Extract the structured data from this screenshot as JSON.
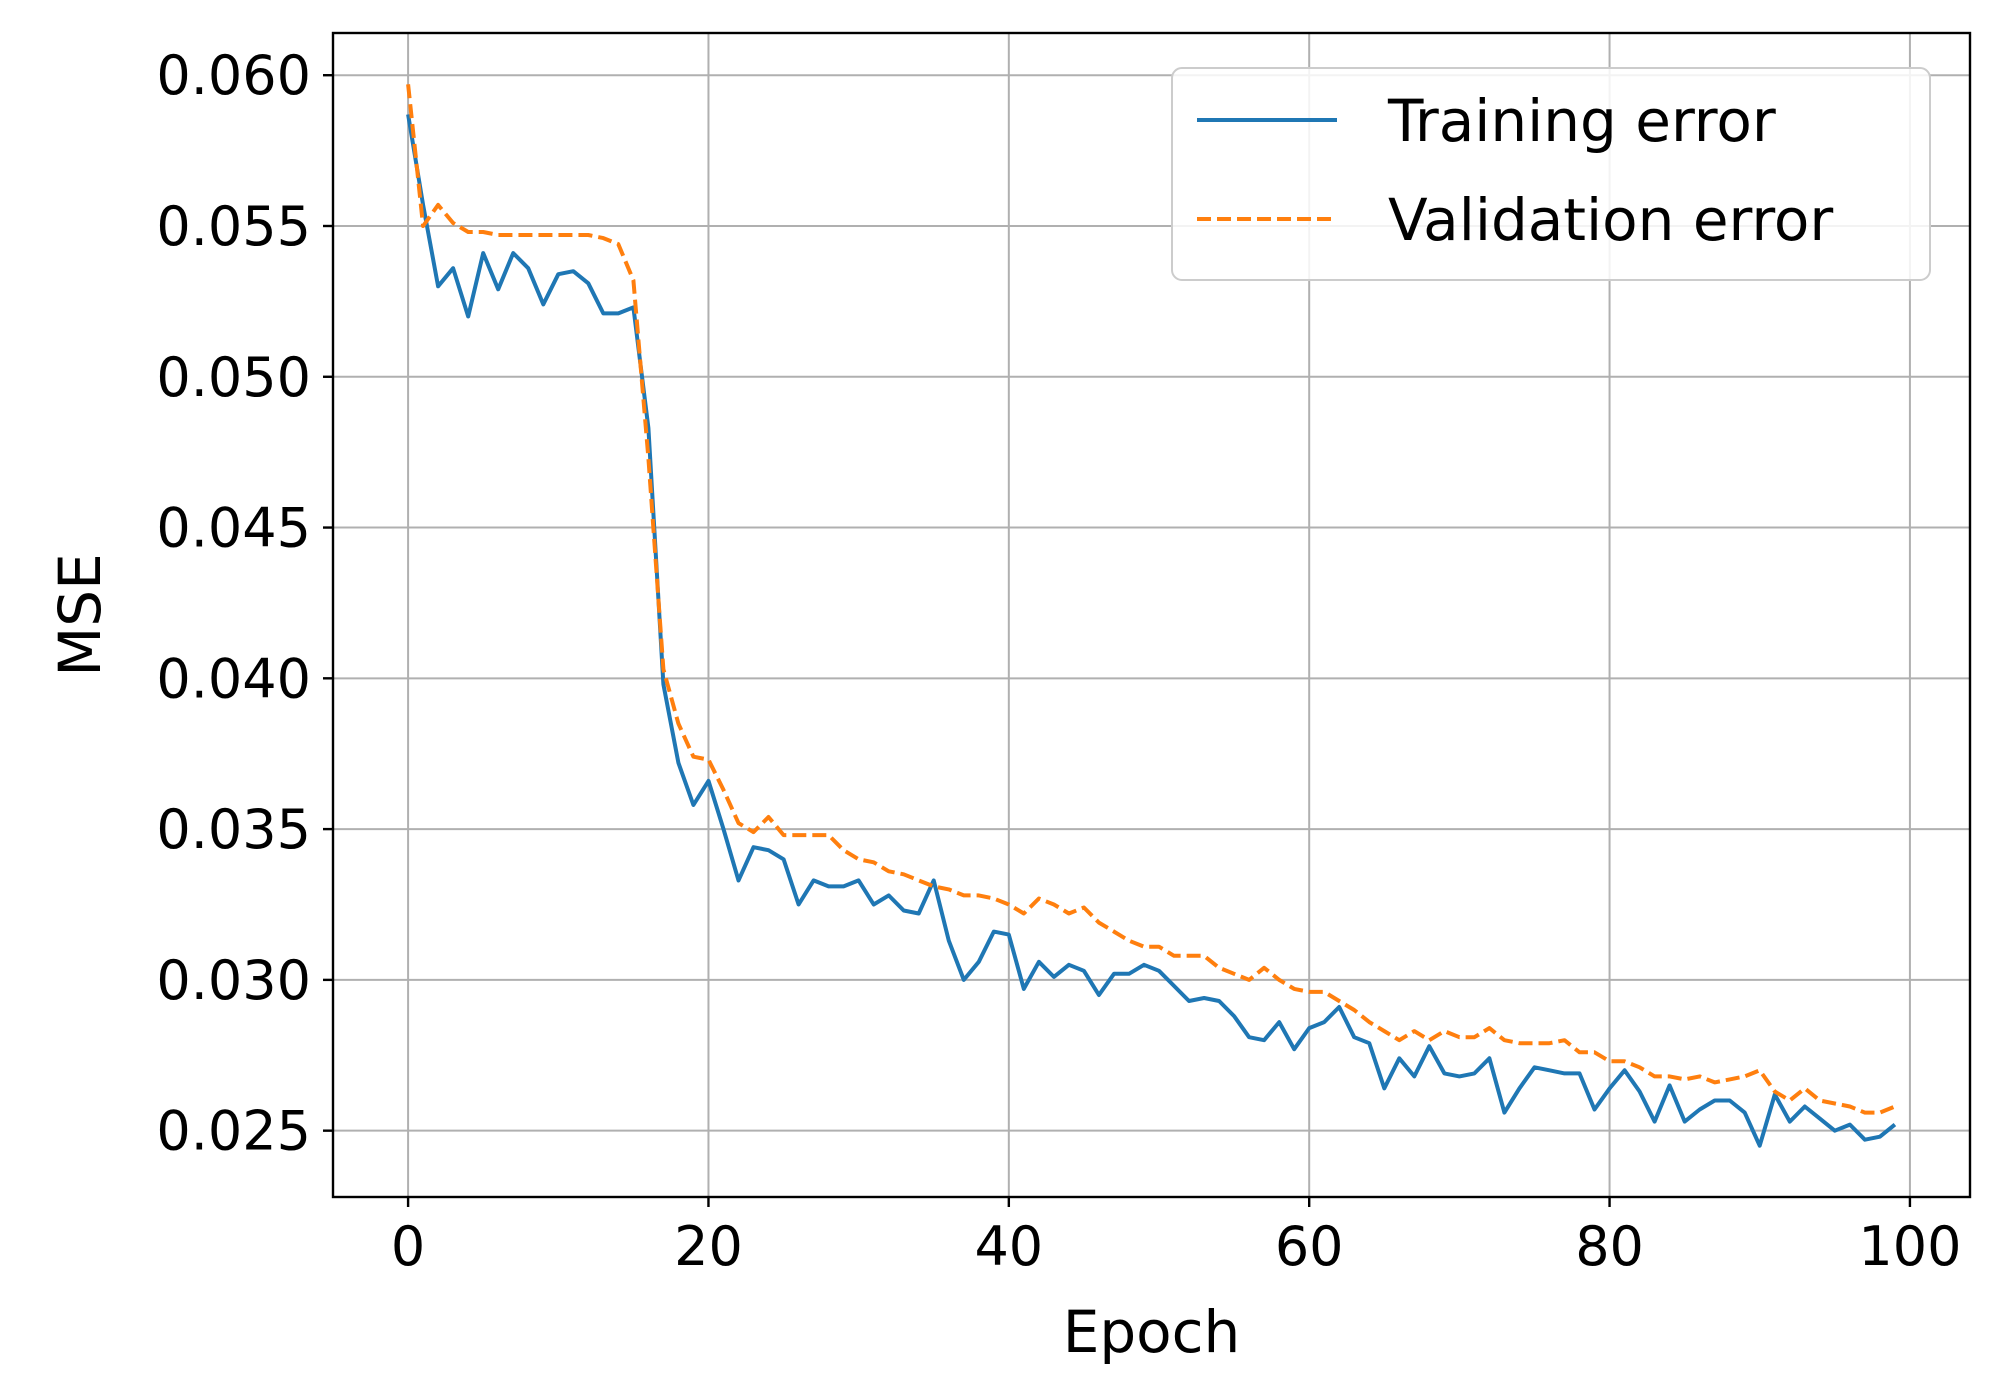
{
  "chart_data": {
    "type": "line",
    "title": "",
    "xlabel": "Epoch",
    "ylabel": "MSE",
    "xlim": [
      -5,
      104
    ],
    "ylim": [
      0.0228,
      0.0614
    ],
    "xticks": [
      0,
      20,
      40,
      60,
      80,
      100
    ],
    "xtick_labels": [
      "0",
      "20",
      "40",
      "60",
      "80",
      "100"
    ],
    "yticks": [
      0.025,
      0.03,
      0.035,
      0.04,
      0.045,
      0.05,
      0.055,
      0.06
    ],
    "ytick_labels": [
      "0.025",
      "0.030",
      "0.035",
      "0.040",
      "0.045",
      "0.050",
      "0.055",
      "0.060"
    ],
    "grid": true,
    "legend_position": "top-right",
    "x": [
      0,
      1,
      2,
      3,
      4,
      5,
      6,
      7,
      8,
      9,
      10,
      11,
      12,
      13,
      14,
      15,
      16,
      17,
      18,
      19,
      20,
      21,
      22,
      23,
      24,
      25,
      26,
      27,
      28,
      29,
      30,
      31,
      32,
      33,
      34,
      35,
      36,
      37,
      38,
      39,
      40,
      41,
      42,
      43,
      44,
      45,
      46,
      47,
      48,
      49,
      50,
      51,
      52,
      53,
      54,
      55,
      56,
      57,
      58,
      59,
      60,
      61,
      62,
      63,
      64,
      65,
      66,
      67,
      68,
      69,
      70,
      71,
      72,
      73,
      74,
      75,
      76,
      77,
      78,
      79,
      80,
      81,
      82,
      83,
      84,
      85,
      86,
      87,
      88,
      89,
      90,
      91,
      92,
      93,
      94,
      95,
      96,
      97,
      98,
      99
    ],
    "series": [
      {
        "name": "Training error",
        "color": "#1f77b4",
        "style": "solid",
        "values": [
          0.0587,
          0.0557,
          0.053,
          0.0536,
          0.052,
          0.0541,
          0.0529,
          0.0541,
          0.0536,
          0.0524,
          0.0534,
          0.0535,
          0.0531,
          0.0521,
          0.0521,
          0.0523,
          0.0483,
          0.0398,
          0.0372,
          0.0358,
          0.0366,
          0.035,
          0.0333,
          0.0344,
          0.0343,
          0.034,
          0.0325,
          0.0333,
          0.0331,
          0.0331,
          0.0333,
          0.0325,
          0.0328,
          0.0323,
          0.0322,
          0.0333,
          0.0313,
          0.03,
          0.0306,
          0.0316,
          0.0315,
          0.0297,
          0.0306,
          0.0301,
          0.0305,
          0.0303,
          0.0295,
          0.0302,
          0.0302,
          0.0305,
          0.0303,
          0.0298,
          0.0293,
          0.0294,
          0.0293,
          0.0288,
          0.0281,
          0.028,
          0.0286,
          0.0277,
          0.0284,
          0.0286,
          0.0291,
          0.0281,
          0.0279,
          0.0264,
          0.0274,
          0.0268,
          0.0278,
          0.0269,
          0.0268,
          0.0269,
          0.0274,
          0.0256,
          0.0264,
          0.0271,
          0.027,
          0.0269,
          0.0269,
          0.0257,
          0.0264,
          0.027,
          0.0263,
          0.0253,
          0.0265,
          0.0253,
          0.0257,
          0.026,
          0.026,
          0.0256,
          0.0245,
          0.0262,
          0.0253,
          0.0258,
          0.0254,
          0.025,
          0.0252,
          0.0247,
          0.0248,
          0.0252
        ]
      },
      {
        "name": "Validation error",
        "color": "#ff7f0e",
        "style": "dashed",
        "values": [
          0.0597,
          0.055,
          0.0557,
          0.0551,
          0.0548,
          0.0548,
          0.0547,
          0.0547,
          0.0547,
          0.0547,
          0.0547,
          0.0547,
          0.0547,
          0.0546,
          0.0544,
          0.0532,
          0.0473,
          0.0403,
          0.0385,
          0.0374,
          0.0373,
          0.0363,
          0.0352,
          0.0349,
          0.0354,
          0.0348,
          0.0348,
          0.0348,
          0.0348,
          0.0343,
          0.034,
          0.0339,
          0.0336,
          0.0335,
          0.0333,
          0.0331,
          0.033,
          0.0328,
          0.0328,
          0.0327,
          0.0325,
          0.0322,
          0.0327,
          0.0325,
          0.0322,
          0.0324,
          0.0319,
          0.0316,
          0.0313,
          0.0311,
          0.0311,
          0.0308,
          0.0308,
          0.0308,
          0.0304,
          0.0302,
          0.03,
          0.0304,
          0.03,
          0.0297,
          0.0296,
          0.0296,
          0.0293,
          0.029,
          0.0286,
          0.0283,
          0.028,
          0.0283,
          0.028,
          0.0283,
          0.0281,
          0.0281,
          0.0284,
          0.028,
          0.0279,
          0.0279,
          0.0279,
          0.028,
          0.0276,
          0.0276,
          0.0273,
          0.0273,
          0.0271,
          0.0268,
          0.0268,
          0.0267,
          0.0268,
          0.0266,
          0.0267,
          0.0268,
          0.027,
          0.0263,
          0.026,
          0.0264,
          0.026,
          0.0259,
          0.0258,
          0.0256,
          0.0256,
          0.0258
        ]
      }
    ]
  }
}
